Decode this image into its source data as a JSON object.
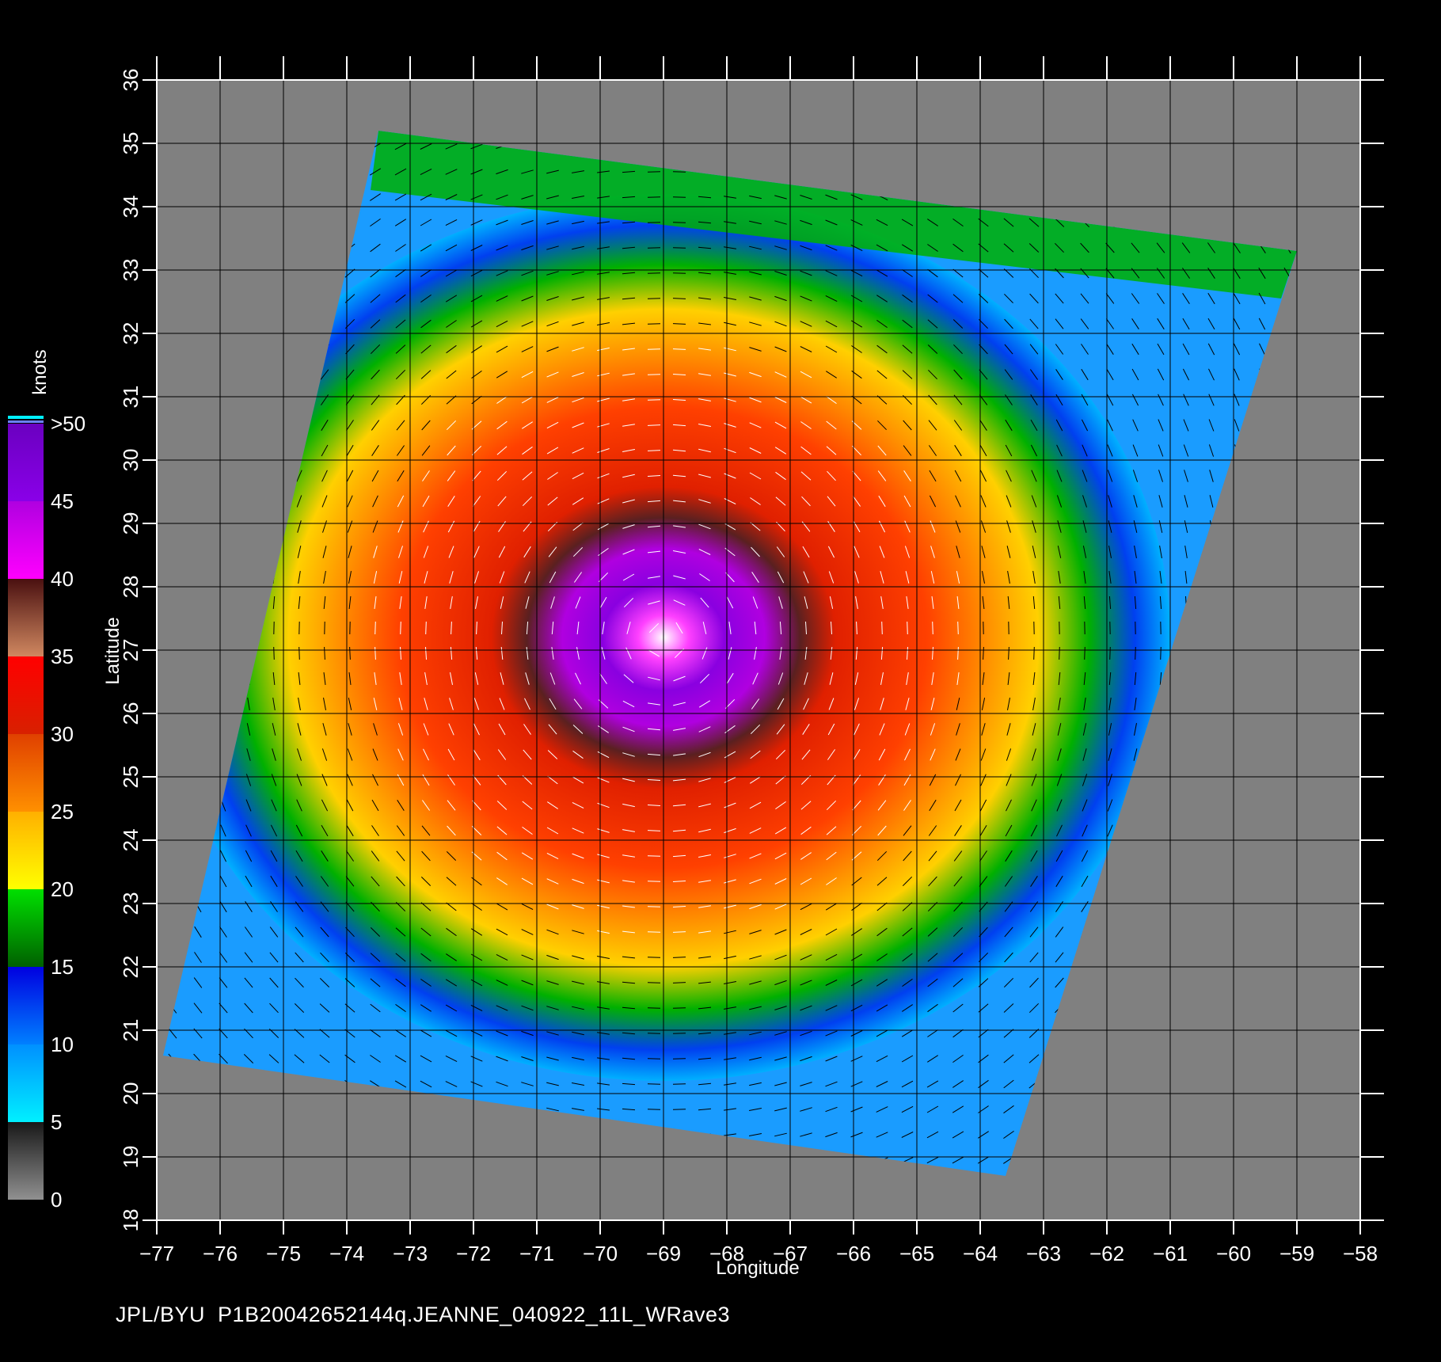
{
  "map": {
    "x_axis_label": "Longitude",
    "y_axis_label": "Latitude",
    "longitudes": [
      -77,
      -76,
      -75,
      -74,
      -73,
      -72,
      -71,
      -70,
      -69,
      -68,
      -67,
      -66,
      -65,
      -64,
      -63,
      -62,
      -61,
      -60,
      -59,
      -58
    ],
    "latitudes": [
      18,
      19,
      20,
      21,
      22,
      23,
      24,
      25,
      26,
      27,
      28,
      29,
      30,
      31,
      32,
      33,
      34,
      35,
      36
    ],
    "lon_range": [
      -77,
      -58
    ],
    "lat_range": [
      18,
      36
    ],
    "storm_center": {
      "lon": -69.0,
      "lat": 27.2
    },
    "background_color": "#808080",
    "swath_corners": [
      {
        "lon": -73.5,
        "lat": 35.2
      },
      {
        "lon": -59.0,
        "lat": 33.3
      },
      {
        "lon": -63.6,
        "lat": 18.7
      },
      {
        "lon": -76.9,
        "lat": 20.6
      }
    ]
  },
  "colorbar": {
    "unit_label": "knots",
    "tick_labels": [
      ">50",
      "45",
      "40",
      "35",
      "30",
      "25",
      "20",
      "15",
      "10",
      "5",
      "0"
    ],
    "bands": [
      {
        "from": 45,
        "to": 50,
        "colors": [
          "#8a00e8",
          "#6a00c0"
        ]
      },
      {
        "from": 40,
        "to": 45,
        "colors": [
          "#ff00ff",
          "#b000e0"
        ]
      },
      {
        "from": 35,
        "to": 40,
        "colors": [
          "#d08860",
          "#4a1010"
        ]
      },
      {
        "from": 30,
        "to": 35,
        "colors": [
          "#d82000",
          "#ff0000"
        ]
      },
      {
        "from": 25,
        "to": 30,
        "colors": [
          "#ff9000",
          "#e04000"
        ]
      },
      {
        "from": 20,
        "to": 25,
        "colors": [
          "#ffff00",
          "#ffb000"
        ]
      },
      {
        "from": 15,
        "to": 20,
        "colors": [
          "#006000",
          "#00e000"
        ]
      },
      {
        "from": 10,
        "to": 15,
        "colors": [
          "#0080ff",
          "#0000e0"
        ]
      },
      {
        "from": 5,
        "to": 10,
        "colors": [
          "#00f0ff",
          "#0090ff"
        ]
      },
      {
        "from": 0,
        "to": 5,
        "colors": [
          "#909090",
          "#181818"
        ]
      }
    ]
  },
  "footer": {
    "text": "JPL/BYU  P1B20042652144q.JEANNE_040922_11L_WRave3"
  }
}
